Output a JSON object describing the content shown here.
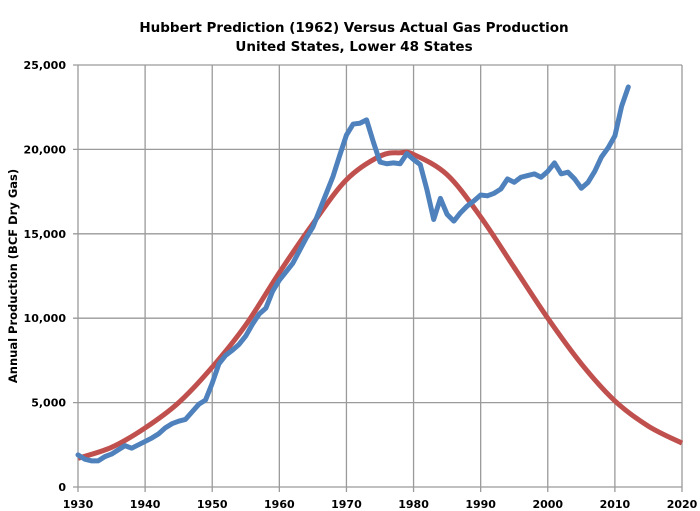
{
  "chart_data": {
    "type": "line",
    "title": "Hubbert Prediction (1962) Versus Actual Gas Production",
    "subtitle": "United States, Lower 48 States",
    "xlabel": "",
    "ylabel": "Annual Production (BCF Dry Gas)",
    "xlim": [
      1930,
      2020
    ],
    "ylim": [
      0,
      25000
    ],
    "x_ticks": [
      1930,
      1940,
      1950,
      1960,
      1970,
      1980,
      1990,
      2000,
      2010,
      2020
    ],
    "x_tick_labels": [
      "1930",
      "1940",
      "1950",
      "1960",
      "1970",
      "1980",
      "1990",
      "2000",
      "2010",
      "2020"
    ],
    "y_ticks": [
      0,
      5000,
      10000,
      15000,
      20000,
      25000
    ],
    "y_tick_labels": [
      "0",
      "5,000",
      "10,000",
      "15,000",
      "20,000",
      "25,000"
    ],
    "grid": true,
    "legend": "none",
    "series": [
      {
        "name": "Hubbert Prediction (1962)",
        "color": "#c0504d",
        "x": [
          1930,
          1935,
          1940,
          1945,
          1950,
          1955,
          1960,
          1965,
          1970,
          1975,
          1978,
          1980,
          1985,
          1990,
          1995,
          2000,
          2005,
          2010,
          2015,
          2020
        ],
        "values": [
          1700,
          2350,
          3500,
          5000,
          7100,
          9600,
          12700,
          15600,
          18200,
          19600,
          19800,
          19700,
          18500,
          16000,
          13000,
          10000,
          7300,
          5100,
          3600,
          2600
        ]
      },
      {
        "name": "Actual Gas Production",
        "color": "#4f81bd",
        "x": [
          1930,
          1931,
          1932,
          1933,
          1934,
          1935,
          1936,
          1937,
          1938,
          1939,
          1940,
          1941,
          1942,
          1943,
          1944,
          1945,
          1946,
          1947,
          1948,
          1949,
          1950,
          1951,
          1952,
          1953,
          1954,
          1955,
          1956,
          1957,
          1958,
          1959,
          1960,
          1961,
          1962,
          1963,
          1964,
          1965,
          1966,
          1967,
          1968,
          1969,
          1970,
          1971,
          1972,
          1973,
          1974,
          1975,
          1976,
          1977,
          1978,
          1979,
          1980,
          1981,
          1982,
          1983,
          1984,
          1985,
          1986,
          1987,
          1988,
          1989,
          1990,
          1991,
          1992,
          1993,
          1994,
          1995,
          1996,
          1997,
          1998,
          1999,
          2000,
          2001,
          2002,
          2003,
          2004,
          2005,
          2006,
          2007,
          2008,
          2009,
          2010,
          2011,
          2012
        ],
        "values": [
          1900,
          1650,
          1550,
          1550,
          1800,
          1950,
          2200,
          2450,
          2300,
          2500,
          2700,
          2900,
          3150,
          3500,
          3750,
          3900,
          4000,
          4450,
          4900,
          5150,
          6150,
          7300,
          7800,
          8100,
          8450,
          8950,
          9650,
          10250,
          10600,
          11600,
          12250,
          12750,
          13250,
          14000,
          14750,
          15400,
          16400,
          17400,
          18400,
          19650,
          20850,
          21500,
          21550,
          21750,
          20450,
          19250,
          19150,
          19200,
          19150,
          19750,
          19400,
          19100,
          17600,
          15850,
          17100,
          16150,
          15750,
          16250,
          16650,
          16950,
          17300,
          17250,
          17400,
          17650,
          18250,
          18050,
          18350,
          18450,
          18550,
          18350,
          18700,
          19200,
          18550,
          18650,
          18250,
          17700,
          18050,
          18700,
          19550,
          20100,
          20800,
          22550,
          23700
        ]
      }
    ]
  }
}
